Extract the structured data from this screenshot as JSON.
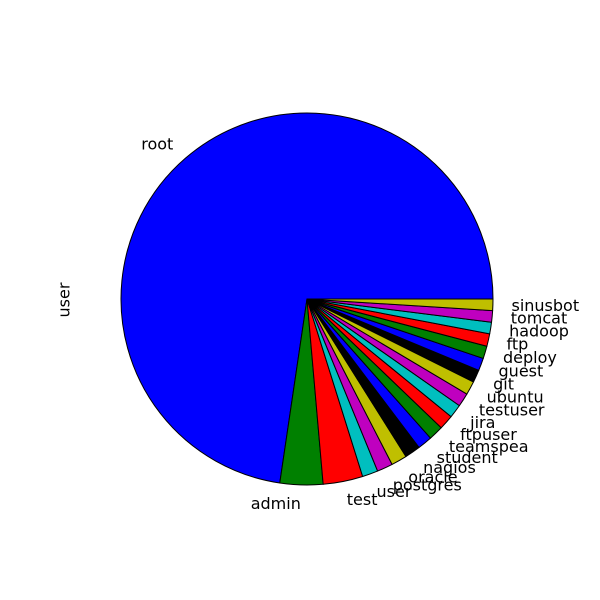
{
  "chart_data": {
    "type": "pie",
    "ylabel": "user",
    "start_angle_deg": 0,
    "direction": "counterclockwise",
    "slices": [
      {
        "label": "root",
        "value": 800,
        "color": "#0000ff"
      },
      {
        "label": "admin",
        "value": 41,
        "color": "#008000"
      },
      {
        "label": "test",
        "value": 38,
        "color": "#ff0000"
      },
      {
        "label": "user",
        "value": 15,
        "color": "#00bfbf"
      },
      {
        "label": "postgres",
        "value": 15,
        "color": "#bf00bf"
      },
      {
        "label": "oracle",
        "value": 15,
        "color": "#bfbf00"
      },
      {
        "label": "nagios",
        "value": 15,
        "color": "#000000"
      },
      {
        "label": "student",
        "value": 14,
        "color": "#0000ff"
      },
      {
        "label": "teamspea",
        "value": 14,
        "color": "#008000"
      },
      {
        "label": "ftpuser",
        "value": 14,
        "color": "#ff0000"
      },
      {
        "label": "jira",
        "value": 13,
        "color": "#00bfbf"
      },
      {
        "label": "testuser",
        "value": 13,
        "color": "#bf00bf"
      },
      {
        "label": "ubuntu",
        "value": 13,
        "color": "#bfbf00"
      },
      {
        "label": "git",
        "value": 12,
        "color": "#000000"
      },
      {
        "label": "guest",
        "value": 12,
        "color": "#0000ff"
      },
      {
        "label": "deploy",
        "value": 12,
        "color": "#008000"
      },
      {
        "label": "ftp",
        "value": 12,
        "color": "#ff0000"
      },
      {
        "label": "hadoop",
        "value": 11,
        "color": "#00bfbf"
      },
      {
        "label": "tomcat",
        "value": 11,
        "color": "#bf00bf"
      },
      {
        "label": "sinusbot",
        "value": 11,
        "color": "#bfbf00"
      }
    ]
  }
}
